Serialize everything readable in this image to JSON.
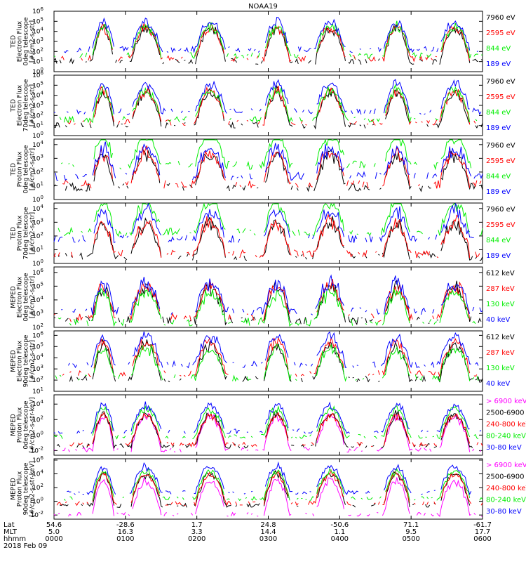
{
  "title": "NOAA19",
  "chart_data": [
    {
      "type": "line",
      "ylabel": [
        "TED",
        "Electron Flux",
        "0deg telescope",
        "[#/cm2-s-str]"
      ],
      "yticks": [
        {
          "base": "10",
          "exp": "0"
        },
        {
          "base": "10",
          "exp": "1"
        },
        {
          "base": "10",
          "exp": "2"
        },
        {
          "base": "10",
          "exp": "3"
        },
        {
          "base": "10",
          "exp": "4"
        },
        {
          "base": "10",
          "exp": "5"
        },
        {
          "base": "10",
          "exp": "6"
        }
      ],
      "ylim_log10": [
        0,
        6
      ],
      "series": [
        {
          "name": "7960 eV",
          "color": "#000000",
          "level": 1.0
        },
        {
          "name": "2595 eV",
          "color": "#ff0000",
          "level": 1.3
        },
        {
          "name": "844 eV",
          "color": "#00ee00",
          "level": 1.6
        },
        {
          "name": "189 eV",
          "color": "#0000ff",
          "level": 2.2
        }
      ]
    },
    {
      "type": "line",
      "ylabel": [
        "TED",
        "Electron Flux",
        "70deg telescope",
        "[#/cm2-s-str]"
      ],
      "yticks": [
        {
          "base": "10",
          "exp": "0"
        },
        {
          "base": "10",
          "exp": "1"
        },
        {
          "base": "10",
          "exp": "2"
        },
        {
          "base": "10",
          "exp": "3"
        },
        {
          "base": "10",
          "exp": "4"
        },
        {
          "base": "10",
          "exp": "5"
        },
        {
          "base": "10",
          "exp": "6"
        }
      ],
      "ylim_log10": [
        0,
        6
      ],
      "series": [
        {
          "name": "7960 eV",
          "color": "#000000",
          "level": 1.0
        },
        {
          "name": "2595 eV",
          "color": "#ff0000",
          "level": 1.3
        },
        {
          "name": "844 eV",
          "color": "#00ee00",
          "level": 1.6
        },
        {
          "name": "189 eV",
          "color": "#0000ff",
          "level": 2.4
        }
      ]
    },
    {
      "type": "line",
      "ylabel": [
        "TED",
        "Proton Flux",
        "0deg telescope",
        "[#/cm2-s-str]"
      ],
      "yticks": [
        {
          "base": "10",
          "exp": "0"
        },
        {
          "base": "10",
          "exp": "1"
        },
        {
          "base": "10",
          "exp": "2"
        },
        {
          "base": "10",
          "exp": "3"
        },
        {
          "base": "10",
          "exp": "4"
        }
      ],
      "ylim_log10": [
        0,
        4.4
      ],
      "series": [
        {
          "name": "7960 eV",
          "color": "#000000",
          "level": 0.9
        },
        {
          "name": "2595 eV",
          "color": "#ff0000",
          "level": 1.1
        },
        {
          "name": "844 eV",
          "color": "#00ee00",
          "level": 2.5
        },
        {
          "name": "189 eV",
          "color": "#0000ff",
          "level": 1.7
        }
      ]
    },
    {
      "type": "line",
      "ylabel": [
        "TED",
        "Proton Flux",
        "70deg telescope",
        "[#/cm2-s-str]"
      ],
      "yticks": [
        {
          "base": "10",
          "exp": "0"
        },
        {
          "base": "10",
          "exp": "1"
        },
        {
          "base": "10",
          "exp": "2"
        },
        {
          "base": "10",
          "exp": "3"
        },
        {
          "base": "10",
          "exp": "4"
        }
      ],
      "ylim_log10": [
        0,
        4.4
      ],
      "series": [
        {
          "name": "7960 eV",
          "color": "#000000",
          "level": 0.5
        },
        {
          "name": "2595 eV",
          "color": "#ff0000",
          "level": 0.7
        },
        {
          "name": "844 eV",
          "color": "#00ee00",
          "level": 2.3
        },
        {
          "name": "189 eV",
          "color": "#0000ff",
          "level": 1.8
        }
      ]
    },
    {
      "type": "line",
      "ylabel": [
        "MEPED",
        "Electron Flux",
        "0deg telescope",
        "[#/cm2-s-str]"
      ],
      "yticks": [
        {
          "base": "10",
          "exp": "2"
        },
        {
          "base": "10",
          "exp": "3"
        },
        {
          "base": "10",
          "exp": "4"
        },
        {
          "base": "10",
          "exp": "5"
        },
        {
          "base": "10",
          "exp": "6"
        }
      ],
      "ylim_log10": [
        2,
        6.4
      ],
      "series": [
        {
          "name": "612 keV",
          "color": "#000000",
          "level": 2.5
        },
        {
          "name": "287 keV",
          "color": "#ff0000",
          "level": 2.7
        },
        {
          "name": "130 keV",
          "color": "#00ee00",
          "level": 2.4
        },
        {
          "name": "40 keV",
          "color": "#0000ff",
          "level": 3.2
        }
      ]
    },
    {
      "type": "line",
      "ylabel": [
        "MEPED",
        "Electron Flux",
        "90deg telescope",
        "[#/cm2-s-str]"
      ],
      "yticks": [
        {
          "base": "10",
          "exp": "1"
        },
        {
          "base": "10",
          "exp": "2"
        },
        {
          "base": "10",
          "exp": "3"
        },
        {
          "base": "10",
          "exp": "4"
        },
        {
          "base": "10",
          "exp": "5"
        },
        {
          "base": "10",
          "exp": "6"
        }
      ],
      "ylim_log10": [
        1,
        6.4
      ],
      "series": [
        {
          "name": "612 keV",
          "color": "#000000",
          "level": 2.1
        },
        {
          "name": "287 keV",
          "color": "#ff0000",
          "level": 2.6
        },
        {
          "name": "130 keV",
          "color": "#00ee00",
          "level": 2.2
        },
        {
          "name": "40 keV",
          "color": "#0000ff",
          "level": 3.4
        }
      ]
    },
    {
      "type": "line",
      "ylabel": [
        "MEPED",
        "Proton Flux",
        "0deg telescope",
        "[#/cm2-s-str-keV]"
      ],
      "yticks": [
        {
          "base": "10",
          "exp": "-2"
        },
        {
          "base": "10",
          "exp": "0"
        },
        {
          "base": "10",
          "exp": "2"
        },
        {
          "base": "10",
          "exp": "4"
        }
      ],
      "ylim_log10": [
        -2.6,
        5.2
      ],
      "series": [
        {
          "name": "> 6900 keV",
          "color": "#ff00ff",
          "level": -1.9
        },
        {
          "name": "2500-6900",
          "color": "#000000",
          "level": -1.4
        },
        {
          "name": "240-800 keV",
          "color": "#ff0000",
          "level": -1.2
        },
        {
          "name": "80-240 keV",
          "color": "#00ee00",
          "level": -0.2
        },
        {
          "name": "30-80 keV",
          "color": "#0000ff",
          "level": 0.5
        }
      ]
    },
    {
      "type": "line",
      "ylabel": [
        "MEPED",
        "Proton Flux",
        "90deg telescope",
        "[#/cm2-s-str-keV]"
      ],
      "yticks": [
        {
          "base": "10",
          "exp": "-2"
        },
        {
          "base": "10",
          "exp": "0"
        },
        {
          "base": "10",
          "exp": "2"
        },
        {
          "base": "10",
          "exp": "4"
        },
        {
          "base": "10",
          "exp": "6"
        }
      ],
      "ylim_log10": [
        -2.6,
        6.2
      ],
      "series": [
        {
          "name": "> 6900 keV",
          "color": "#ff00ff",
          "level": -1.9
        },
        {
          "name": "2500-6900",
          "color": "#000000",
          "level": -0.6
        },
        {
          "name": "240-800 keV",
          "color": "#ff0000",
          "level": -0.3
        },
        {
          "name": "80-240 keV",
          "color": "#00ee00",
          "level": 0.4
        },
        {
          "name": "30-80 keV",
          "color": "#0000ff",
          "level": 1.3
        }
      ]
    }
  ],
  "footer": {
    "row_labels": [
      "Lat",
      "MLT",
      "hhmm",
      "2018 Feb 09"
    ],
    "columns": [
      {
        "lat": "54.6",
        "mlt": "5.0",
        "hhmm": "0000"
      },
      {
        "lat": "-28.6",
        "mlt": "16.3",
        "hhmm": "0100"
      },
      {
        "lat": "1.7",
        "mlt": "3.3",
        "hhmm": "0200"
      },
      {
        "lat": "24.8",
        "mlt": "14.4",
        "hhmm": "0300"
      },
      {
        "lat": "-50.6",
        "mlt": "1.1",
        "hhmm": "0400"
      },
      {
        "lat": "71.1",
        "mlt": "9.5",
        "hhmm": "0500"
      },
      {
        "lat": "-61.7",
        "mlt": "17.7",
        "hhmm": "0600"
      }
    ]
  }
}
